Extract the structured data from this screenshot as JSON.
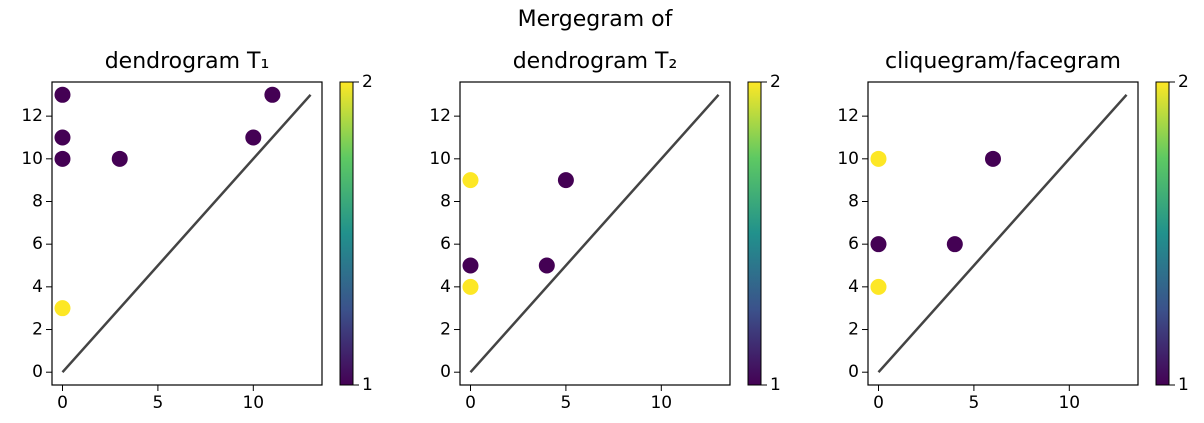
{
  "chart_data": [
    {
      "type": "scatter",
      "title": [
        "dendrogram T₁"
      ],
      "x": [
        0,
        0,
        0,
        3,
        10,
        11,
        0
      ],
      "y": [
        13,
        11,
        10,
        10,
        11,
        13,
        3
      ],
      "c": [
        1,
        1,
        1,
        1,
        1,
        1,
        2
      ],
      "diagonal": {
        "x": [
          0,
          13
        ],
        "y": [
          0,
          13
        ]
      },
      "xlim": [
        -0.55,
        13.6
      ],
      "ylim": [
        -0.6,
        13.6
      ],
      "xticks": [
        0,
        5,
        10
      ],
      "yticks": [
        0,
        2,
        4,
        6,
        8,
        10,
        12
      ],
      "colormap": "viridis",
      "clim": [
        1,
        2
      ],
      "cticks": [
        1,
        2
      ]
    },
    {
      "type": "scatter",
      "title": [
        "Mergegram of",
        "dendrogram T₂"
      ],
      "x": [
        0,
        5,
        0,
        4,
        0
      ],
      "y": [
        9,
        9,
        5,
        5,
        4
      ],
      "c": [
        2,
        1,
        1,
        1,
        2
      ],
      "diagonal": {
        "x": [
          0,
          13
        ],
        "y": [
          0,
          13
        ]
      },
      "xlim": [
        -0.55,
        13.6
      ],
      "ylim": [
        -0.6,
        13.6
      ],
      "xticks": [
        0,
        5,
        10
      ],
      "yticks": [
        0,
        2,
        4,
        6,
        8,
        10,
        12
      ],
      "colormap": "viridis",
      "clim": [
        1,
        2
      ],
      "cticks": [
        1,
        2
      ]
    },
    {
      "type": "scatter",
      "title": [
        "cliquegram/facegram"
      ],
      "x": [
        0,
        6,
        0,
        4,
        0
      ],
      "y": [
        10,
        10,
        6,
        6,
        4
      ],
      "c": [
        2,
        1,
        1,
        1,
        2
      ],
      "diagonal": {
        "x": [
          0,
          13
        ],
        "y": [
          0,
          13
        ]
      },
      "xlim": [
        -0.55,
        13.6
      ],
      "ylim": [
        -0.6,
        13.6
      ],
      "xticks": [
        0,
        5,
        10
      ],
      "yticks": [
        0,
        2,
        4,
        6,
        8,
        10,
        12
      ],
      "colormap": "viridis",
      "clim": [
        1,
        2
      ],
      "cticks": [
        1,
        2
      ]
    }
  ]
}
